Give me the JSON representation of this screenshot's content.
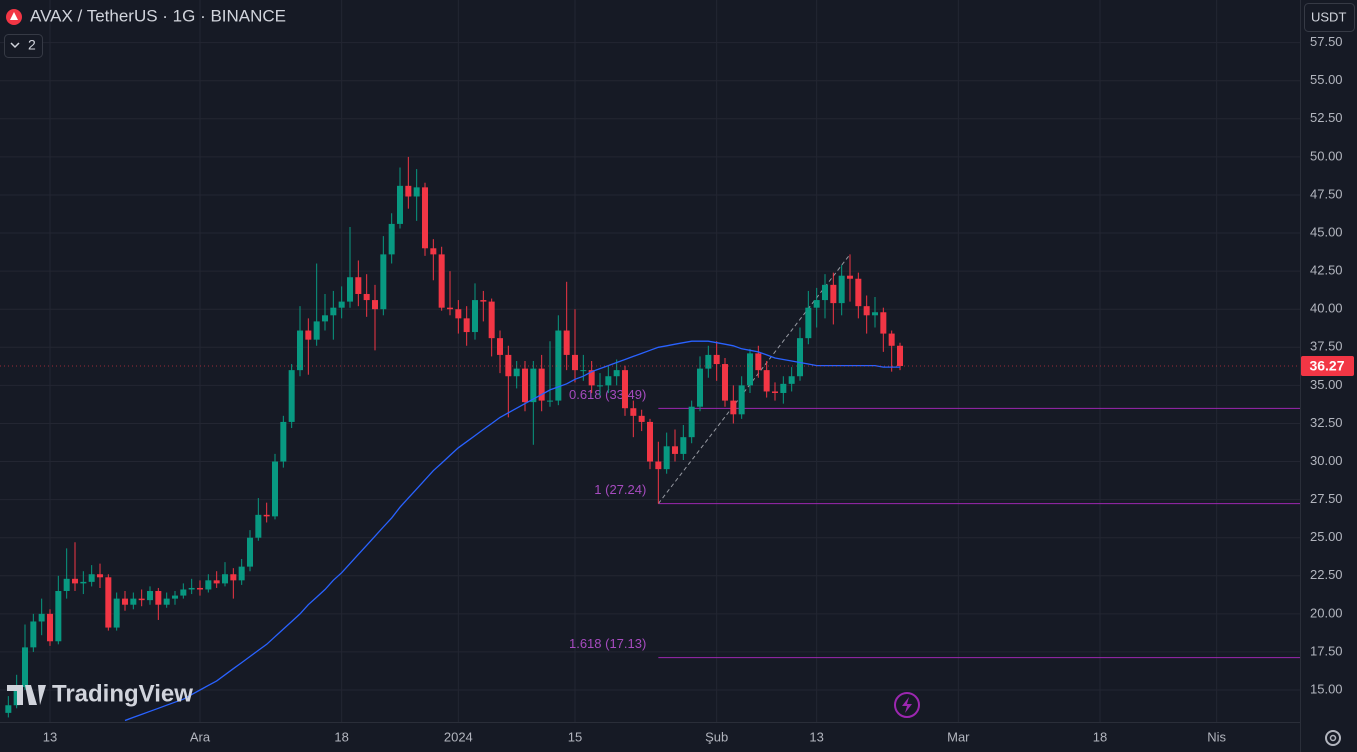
{
  "chart_data": {
    "type": "candlestick",
    "title": "AVAX / TetherUS · 1G · BINANCE",
    "indicator_count": "2",
    "currency": "USDT",
    "watermark": "TradingView",
    "x": [
      "2023-11-08",
      "2023-11-09",
      "2023-11-10",
      "2023-11-11",
      "2023-11-12",
      "2023-11-13",
      "2023-11-14",
      "2023-11-15",
      "2023-11-16",
      "2023-11-17",
      "2023-11-18",
      "2023-11-19",
      "2023-11-20",
      "2023-11-21",
      "2023-11-22",
      "2023-11-23",
      "2023-11-24",
      "2023-11-25",
      "2023-11-26",
      "2023-11-27",
      "2023-11-28",
      "2023-11-29",
      "2023-11-30",
      "2023-12-01",
      "2023-12-02",
      "2023-12-03",
      "2023-12-04",
      "2023-12-05",
      "2023-12-06",
      "2023-12-07",
      "2023-12-08",
      "2023-12-09",
      "2023-12-10",
      "2023-12-11",
      "2023-12-12",
      "2023-12-13",
      "2023-12-14",
      "2023-12-15",
      "2023-12-16",
      "2023-12-17",
      "2023-12-18",
      "2023-12-19",
      "2023-12-20",
      "2023-12-21",
      "2023-12-22",
      "2023-12-23",
      "2023-12-24",
      "2023-12-25",
      "2023-12-26",
      "2023-12-27",
      "2023-12-28",
      "2023-12-29",
      "2023-12-30",
      "2023-12-31",
      "2024-01-01",
      "2024-01-02",
      "2024-01-03",
      "2024-01-04",
      "2024-01-05",
      "2024-01-06",
      "2024-01-07",
      "2024-01-08",
      "2024-01-09",
      "2024-01-10",
      "2024-01-11",
      "2024-01-12",
      "2024-01-13",
      "2024-01-14",
      "2024-01-15",
      "2024-01-16",
      "2024-01-17",
      "2024-01-18",
      "2024-01-19",
      "2024-01-20",
      "2024-01-21",
      "2024-01-22",
      "2024-01-23",
      "2024-01-24",
      "2024-01-25",
      "2024-01-26",
      "2024-01-27",
      "2024-01-28",
      "2024-01-29",
      "2024-01-30",
      "2024-01-31",
      "2024-02-01",
      "2024-02-02",
      "2024-02-03",
      "2024-02-04",
      "2024-02-05",
      "2024-02-06",
      "2024-02-07",
      "2024-02-08",
      "2024-02-09",
      "2024-02-10",
      "2024-02-11",
      "2024-02-12",
      "2024-02-13",
      "2024-02-14",
      "2024-02-15",
      "2024-02-16",
      "2024-02-17",
      "2024-02-18",
      "2024-02-19",
      "2024-02-20",
      "2024-02-21",
      "2024-02-22",
      "2024-02-23"
    ],
    "open": [
      13.5,
      14.0,
      15.2,
      17.8,
      19.5,
      20.0,
      18.2,
      21.5,
      22.3,
      22.0,
      22.1,
      22.6,
      22.4,
      19.1,
      21.0,
      20.6,
      21.0,
      20.9,
      21.5,
      20.6,
      21.0,
      21.2,
      21.6,
      21.7,
      21.6,
      22.2,
      22.0,
      22.6,
      22.2,
      23.1,
      25.0,
      26.5,
      26.4,
      30.0,
      32.6,
      36.0,
      38.6,
      38.0,
      39.2,
      39.6,
      40.1,
      40.5,
      42.1,
      41.0,
      40.6,
      40.0,
      43.6,
      45.6,
      48.1,
      47.4,
      48.0,
      44.0,
      43.6,
      40.1,
      40.0,
      39.4,
      38.5,
      40.6,
      40.5,
      38.1,
      37.0,
      35.6,
      36.1,
      33.9,
      36.1,
      34.0,
      34.0,
      38.6,
      37.0,
      36.0,
      36.0,
      35.0,
      35.0,
      35.6,
      36.0,
      33.5,
      33.0,
      32.6,
      30.0,
      29.5,
      31.0,
      30.5,
      31.6,
      33.6,
      36.1,
      37.0,
      36.4,
      34.0,
      33.1,
      35.0,
      37.1,
      36.0,
      34.6,
      34.5,
      35.1,
      35.6,
      38.1,
      40.1,
      40.6,
      41.6,
      40.4,
      42.2,
      42.0,
      40.2,
      39.6,
      39.8,
      38.4,
      37.6
    ],
    "high": [
      14.6,
      16.0,
      19.3,
      20.0,
      21.0,
      20.3,
      22.5,
      24.3,
      24.7,
      22.8,
      23.2,
      23.3,
      22.6,
      21.4,
      21.5,
      21.4,
      21.6,
      21.8,
      21.7,
      21.4,
      21.5,
      22.0,
      22.3,
      22.2,
      22.6,
      22.8,
      23.4,
      23.0,
      23.6,
      25.5,
      27.6,
      27.3,
      30.5,
      33.0,
      36.4,
      40.2,
      39.4,
      43.0,
      41.0,
      41.2,
      41.5,
      45.4,
      43.2,
      42.3,
      41.6,
      44.8,
      46.3,
      49.3,
      50.0,
      49.2,
      48.3,
      44.6,
      44.1,
      42.5,
      40.6,
      40.2,
      41.7,
      41.2,
      40.7,
      38.6,
      37.6,
      36.6,
      36.6,
      36.6,
      37.0,
      37.9,
      39.6,
      41.8,
      40.0,
      37.0,
      36.6,
      35.8,
      36.3,
      36.7,
      36.3,
      34.0,
      33.4,
      32.8,
      31.3,
      31.9,
      32.1,
      32.4,
      34.0,
      36.9,
      37.6,
      37.9,
      36.8,
      35.0,
      35.6,
      37.4,
      37.6,
      36.6,
      35.2,
      35.6,
      36.2,
      38.8,
      41.2,
      41.4,
      42.3,
      42.4,
      42.9,
      43.6,
      42.4,
      40.9,
      40.8,
      40.1,
      38.6,
      37.8
    ],
    "low": [
      13.2,
      13.8,
      15.0,
      17.5,
      18.6,
      17.9,
      18.0,
      21.0,
      21.5,
      21.3,
      21.8,
      21.7,
      18.9,
      18.9,
      20.2,
      20.3,
      20.5,
      20.6,
      19.6,
      20.4,
      20.6,
      21.0,
      21.3,
      21.2,
      21.4,
      21.7,
      21.8,
      21.0,
      21.9,
      22.8,
      24.8,
      26.0,
      26.2,
      29.6,
      32.2,
      35.6,
      35.7,
      37.6,
      38.6,
      38.0,
      39.4,
      40.1,
      40.2,
      39.5,
      37.3,
      39.6,
      43.0,
      45.3,
      46.6,
      45.8,
      43.5,
      41.9,
      39.9,
      39.6,
      38.4,
      37.6,
      38.0,
      39.2,
      36.9,
      35.8,
      32.9,
      34.8,
      33.3,
      31.1,
      33.3,
      33.6,
      33.7,
      36.0,
      35.2,
      35.3,
      34.5,
      34.3,
      34.5,
      35.0,
      33.0,
      31.6,
      32.0,
      29.5,
      27.24,
      29.2,
      30.0,
      30.1,
      31.2,
      33.3,
      35.5,
      35.3,
      33.6,
      32.5,
      32.8,
      34.5,
      35.5,
      34.2,
      34.0,
      33.8,
      34.6,
      35.3,
      37.7,
      38.8,
      39.4,
      39.0,
      39.6,
      40.5,
      39.4,
      38.4,
      38.8,
      37.2,
      35.9,
      36.0
    ],
    "close": [
      14.0,
      15.2,
      17.8,
      19.5,
      20.0,
      18.2,
      21.5,
      22.3,
      22.0,
      22.1,
      22.6,
      22.4,
      19.1,
      21.0,
      20.6,
      21.0,
      20.9,
      21.5,
      20.6,
      21.0,
      21.2,
      21.6,
      21.7,
      21.6,
      22.2,
      22.0,
      22.6,
      22.2,
      23.1,
      25.0,
      26.5,
      26.4,
      30.0,
      32.6,
      36.0,
      38.6,
      38.0,
      39.2,
      39.6,
      40.1,
      40.5,
      42.1,
      41.0,
      40.6,
      40.0,
      43.6,
      45.6,
      48.1,
      47.4,
      48.0,
      44.0,
      43.6,
      40.1,
      40.0,
      39.4,
      38.5,
      40.6,
      40.5,
      38.1,
      37.0,
      35.6,
      36.1,
      33.9,
      36.1,
      34.0,
      34.0,
      38.6,
      37.0,
      36.0,
      36.0,
      35.0,
      35.0,
      35.6,
      36.0,
      33.5,
      33.0,
      32.6,
      30.0,
      29.5,
      31.0,
      30.5,
      31.6,
      33.6,
      36.1,
      37.0,
      36.4,
      34.0,
      33.1,
      35.0,
      37.1,
      36.0,
      34.6,
      34.5,
      35.1,
      35.6,
      38.1,
      40.1,
      40.6,
      41.6,
      40.4,
      42.2,
      42.0,
      40.2,
      39.6,
      39.8,
      38.4,
      37.6,
      36.27
    ],
    "up_color": "#089981",
    "down_color": "#f23645",
    "ma": {
      "color": "#2962ff",
      "values": [
        null,
        null,
        null,
        null,
        null,
        null,
        null,
        null,
        null,
        null,
        null,
        null,
        null,
        null,
        13.0,
        13.2,
        13.4,
        13.6,
        13.8,
        14.0,
        14.2,
        14.4,
        14.7,
        15.0,
        15.3,
        15.6,
        16.0,
        16.4,
        16.8,
        17.2,
        17.6,
        18.0,
        18.5,
        19.0,
        19.5,
        20.0,
        20.6,
        21.1,
        21.6,
        22.2,
        22.7,
        23.3,
        23.9,
        24.5,
        25.1,
        25.7,
        26.3,
        27.0,
        27.6,
        28.2,
        28.8,
        29.4,
        29.9,
        30.4,
        30.9,
        31.3,
        31.7,
        32.1,
        32.5,
        32.9,
        33.2,
        33.5,
        33.8,
        34.1,
        34.4,
        34.7,
        34.9,
        35.1,
        35.4,
        35.6,
        35.9,
        36.1,
        36.3,
        36.5,
        36.7,
        36.9,
        37.1,
        37.3,
        37.5,
        37.6,
        37.7,
        37.8,
        37.9,
        37.9,
        37.9,
        37.8,
        37.7,
        37.6,
        37.4,
        37.3,
        37.2,
        37.0,
        36.8,
        36.7,
        36.6,
        36.5,
        36.4,
        36.3,
        36.3,
        36.3,
        36.3,
        36.3,
        36.3,
        36.3,
        36.3,
        36.2,
        36.2,
        36.2
      ]
    },
    "fib": {
      "color": "#9c27b0",
      "from": "2024-01-25",
      "levels": [
        {
          "value": 33.49,
          "label": "0.618 (33.49)"
        },
        {
          "value": 27.24,
          "label": "1 (27.24)"
        },
        {
          "value": 17.13,
          "label": "1.618 (17.13)"
        }
      ]
    },
    "trend_line": {
      "color": "#9598a1",
      "x": [
        "2024-01-25",
        "2024-02-17"
      ],
      "y": [
        27.24,
        43.6
      ]
    },
    "last_price": 36.27,
    "xlim": [
      "2023-11-07",
      "2024-04-11"
    ],
    "xticks": [
      {
        "value": "2023-11-13",
        "label": "13"
      },
      {
        "value": "2023-12-01",
        "label": "Ara"
      },
      {
        "value": "2023-12-18",
        "label": "18"
      },
      {
        "value": "2024-01-01",
        "label": "2024"
      },
      {
        "value": "2024-01-15",
        "label": "15"
      },
      {
        "value": "2024-02-01",
        "label": "Şub"
      },
      {
        "value": "2024-02-13",
        "label": "13"
      },
      {
        "value": "2024-03-01",
        "label": "Mar"
      },
      {
        "value": "2024-03-18",
        "label": "18"
      },
      {
        "value": "2024-04-01",
        "label": "Nis"
      }
    ],
    "ylim": [
      12.9,
      60.3
    ],
    "yticks": [
      {
        "value": 15,
        "label": "15.00"
      },
      {
        "value": 17.5,
        "label": "17.50"
      },
      {
        "value": 20,
        "label": "20.00"
      },
      {
        "value": 22.5,
        "label": "22.50"
      },
      {
        "value": 25,
        "label": "25.00"
      },
      {
        "value": 27.5,
        "label": "27.50"
      },
      {
        "value": 30,
        "label": "30.00"
      },
      {
        "value": 32.5,
        "label": "32.50"
      },
      {
        "value": 35,
        "label": "35.00"
      },
      {
        "value": 37.5,
        "label": "37.50"
      },
      {
        "value": 40,
        "label": "40.00"
      },
      {
        "value": 42.5,
        "label": "42.50"
      },
      {
        "value": 45,
        "label": "45.00"
      },
      {
        "value": 47.5,
        "label": "47.50"
      },
      {
        "value": 50,
        "label": "50.00"
      },
      {
        "value": 52.5,
        "label": "52.50"
      },
      {
        "value": 55,
        "label": "55.00"
      },
      {
        "value": 57.5,
        "label": "57.50"
      }
    ],
    "grid": true
  }
}
